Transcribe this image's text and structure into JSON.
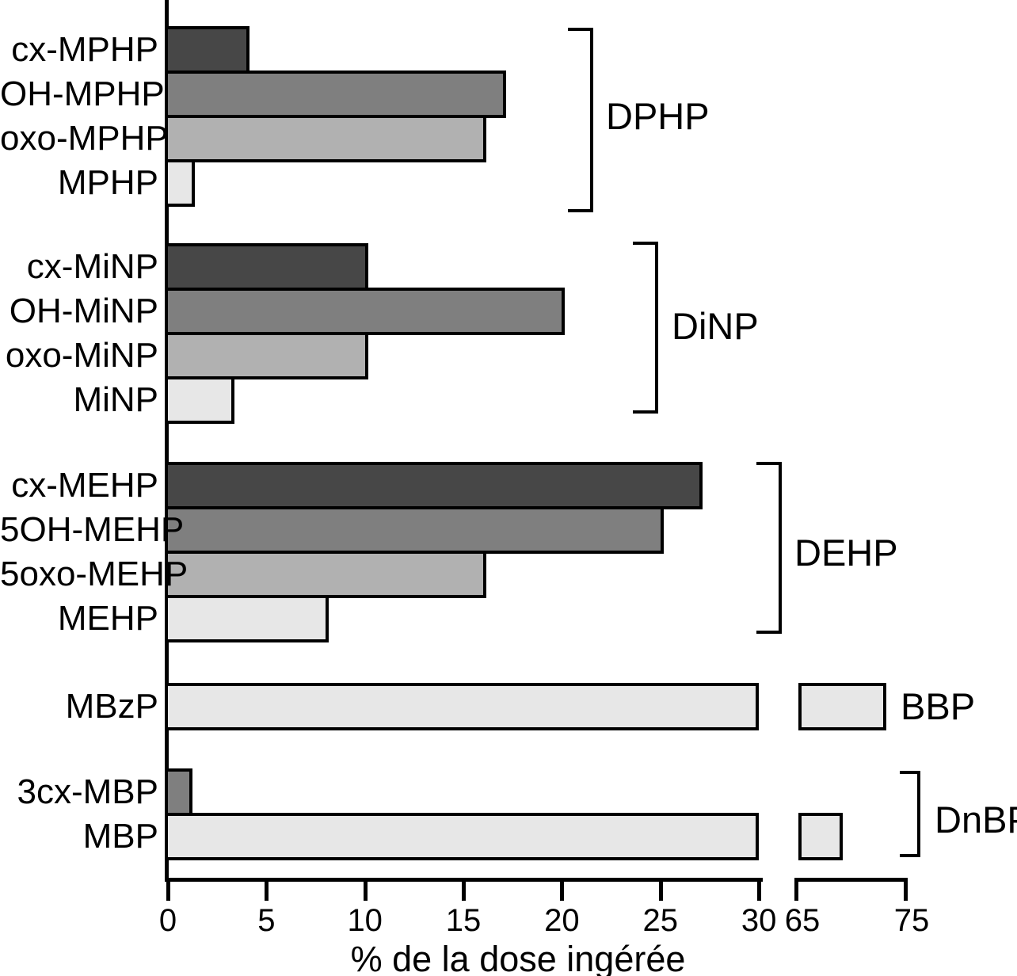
{
  "chart_data": {
    "type": "bar",
    "orientation": "horizontal",
    "title": "",
    "xlabel": "% de la dose ingérée",
    "axis": {
      "broken_axis": true,
      "segments": [
        {
          "min": 0,
          "max": 30,
          "ticks": [
            0,
            5,
            10,
            15,
            20,
            25,
            30
          ],
          "tick_labels": [
            "0",
            "5",
            "10",
            "15",
            "20",
            "25",
            "30"
          ]
        },
        {
          "min": 65,
          "max": 75,
          "ticks": [
            65,
            75
          ],
          "tick_labels": [
            "65",
            "75"
          ]
        }
      ],
      "grid": false
    },
    "legend": false,
    "colors": {
      "dark": "#474747",
      "medium": "#7f7f7f",
      "light": "#b1b1b1",
      "lightest": "#e7e7e7",
      "outline": "#000000"
    },
    "groups": [
      {
        "label": "DPHP",
        "bracket": true,
        "bars": [
          {
            "label": "cx-MPHP",
            "value": 4,
            "shade": "dark"
          },
          {
            "label": "OH-MPHP",
            "value": 17,
            "shade": "medium"
          },
          {
            "label": "oxo-MPHP",
            "value": 16,
            "shade": "light"
          },
          {
            "label": "MPHP",
            "value": 1.2,
            "shade": "lightest"
          }
        ]
      },
      {
        "label": "DiNP",
        "bracket": true,
        "bars": [
          {
            "label": "cx-MiNP",
            "value": 10,
            "shade": "dark"
          },
          {
            "label": "OH-MiNP",
            "value": 20,
            "shade": "medium"
          },
          {
            "label": "oxo-MiNP",
            "value": 10,
            "shade": "light"
          },
          {
            "label": "MiNP",
            "value": 3.2,
            "shade": "lightest"
          }
        ]
      },
      {
        "label": "DEHP",
        "bracket": true,
        "bars": [
          {
            "label": "cx-MEHP",
            "value": 27,
            "shade": "dark"
          },
          {
            "label": "5OH-MEHP",
            "value": 25,
            "shade": "medium"
          },
          {
            "label": "5oxo-MEHP",
            "value": 16,
            "shade": "light"
          },
          {
            "label": "MEHP",
            "value": 8,
            "shade": "lightest"
          }
        ]
      },
      {
        "label": "BBP",
        "bracket": false,
        "bars": [
          {
            "label": "MBzP",
            "value": 73,
            "shade": "lightest"
          }
        ]
      },
      {
        "label": "DnBP",
        "bracket": true,
        "bars": [
          {
            "label": "3cx-MBP",
            "value": 1.1,
            "shade": "medium"
          },
          {
            "label": "MBP",
            "value": 69,
            "shade": "lightest"
          }
        ]
      }
    ]
  }
}
